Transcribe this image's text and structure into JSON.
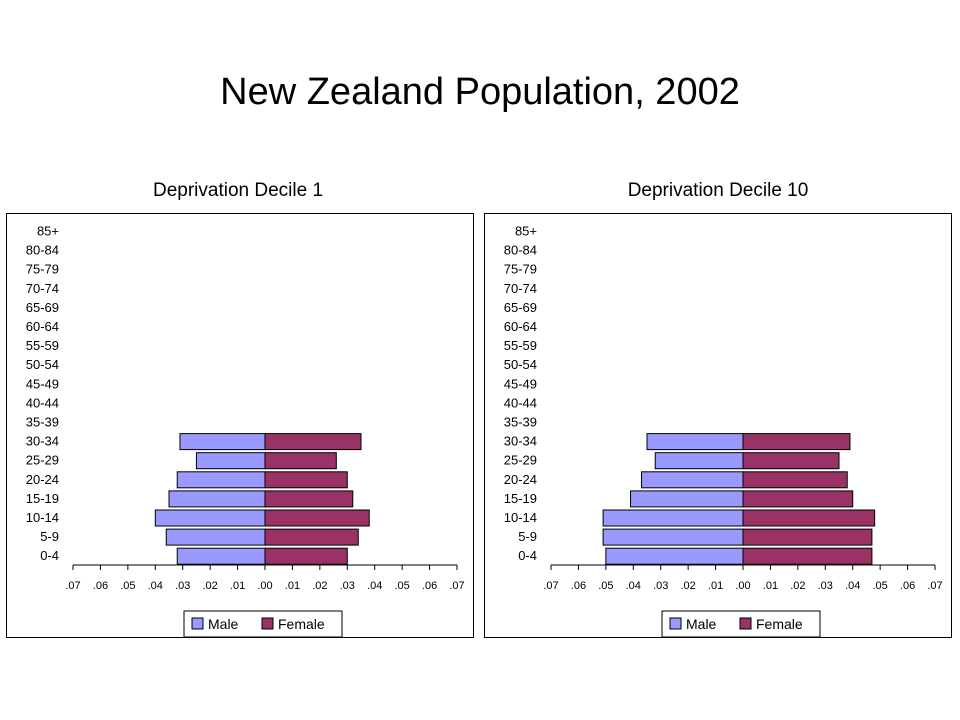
{
  "title": "New Zealand Population, 2002",
  "colors": {
    "male": "#9999ff",
    "female": "#993366"
  },
  "chart_data": [
    {
      "type": "bar",
      "orientation": "horizontal-pyramid",
      "title": "Deprivation Decile 1",
      "categories": [
        "85+",
        "80-84",
        "75-79",
        "70-74",
        "65-69",
        "60-64",
        "55-59",
        "50-54",
        "45-49",
        "40-44",
        "35-39",
        "30-34",
        "25-29",
        "20-24",
        "15-19",
        "10-14",
        "5-9",
        "0-4"
      ],
      "series": [
        {
          "name": "Male",
          "values": [
            0,
            0,
            0,
            0,
            0,
            0,
            0,
            0,
            0,
            0,
            0,
            0.031,
            0.025,
            0.032,
            0.035,
            0.04,
            0.036,
            0.032
          ]
        },
        {
          "name": "Female",
          "values": [
            0,
            0,
            0,
            0,
            0,
            0,
            0,
            0,
            0,
            0,
            0,
            0.035,
            0.026,
            0.03,
            0.032,
            0.038,
            0.034,
            0.03
          ]
        }
      ],
      "xlim": [
        -0.07,
        0.07
      ],
      "xticks": [
        ".07",
        ".06",
        ".05",
        ".04",
        ".03",
        ".02",
        ".01",
        ".00",
        ".01",
        ".02",
        ".03",
        ".04",
        ".05",
        ".06",
        ".07"
      ],
      "legend": {
        "position": "bottom",
        "labels": [
          "Male",
          "Female"
        ]
      },
      "grid": false
    },
    {
      "type": "bar",
      "orientation": "horizontal-pyramid",
      "title": "Deprivation Decile 10",
      "categories": [
        "85+",
        "80-84",
        "75-79",
        "70-74",
        "65-69",
        "60-64",
        "55-59",
        "50-54",
        "45-49",
        "40-44",
        "35-39",
        "30-34",
        "25-29",
        "20-24",
        "15-19",
        "10-14",
        "5-9",
        "0-4"
      ],
      "series": [
        {
          "name": "Male",
          "values": [
            0,
            0,
            0,
            0,
            0,
            0,
            0,
            0,
            0,
            0,
            0,
            0.035,
            0.032,
            0.037,
            0.041,
            0.051,
            0.051,
            0.05
          ]
        },
        {
          "name": "Female",
          "values": [
            0,
            0,
            0,
            0,
            0,
            0,
            0,
            0,
            0,
            0,
            0,
            0.039,
            0.035,
            0.038,
            0.04,
            0.048,
            0.047,
            0.047
          ]
        }
      ],
      "xlim": [
        -0.07,
        0.07
      ],
      "xticks": [
        ".07",
        ".06",
        ".05",
        ".04",
        ".03",
        ".02",
        ".01",
        ".00",
        ".01",
        ".02",
        ".03",
        ".04",
        ".05",
        ".06",
        ".07"
      ],
      "legend": {
        "position": "bottom",
        "labels": [
          "Male",
          "Female"
        ]
      },
      "grid": false
    }
  ]
}
